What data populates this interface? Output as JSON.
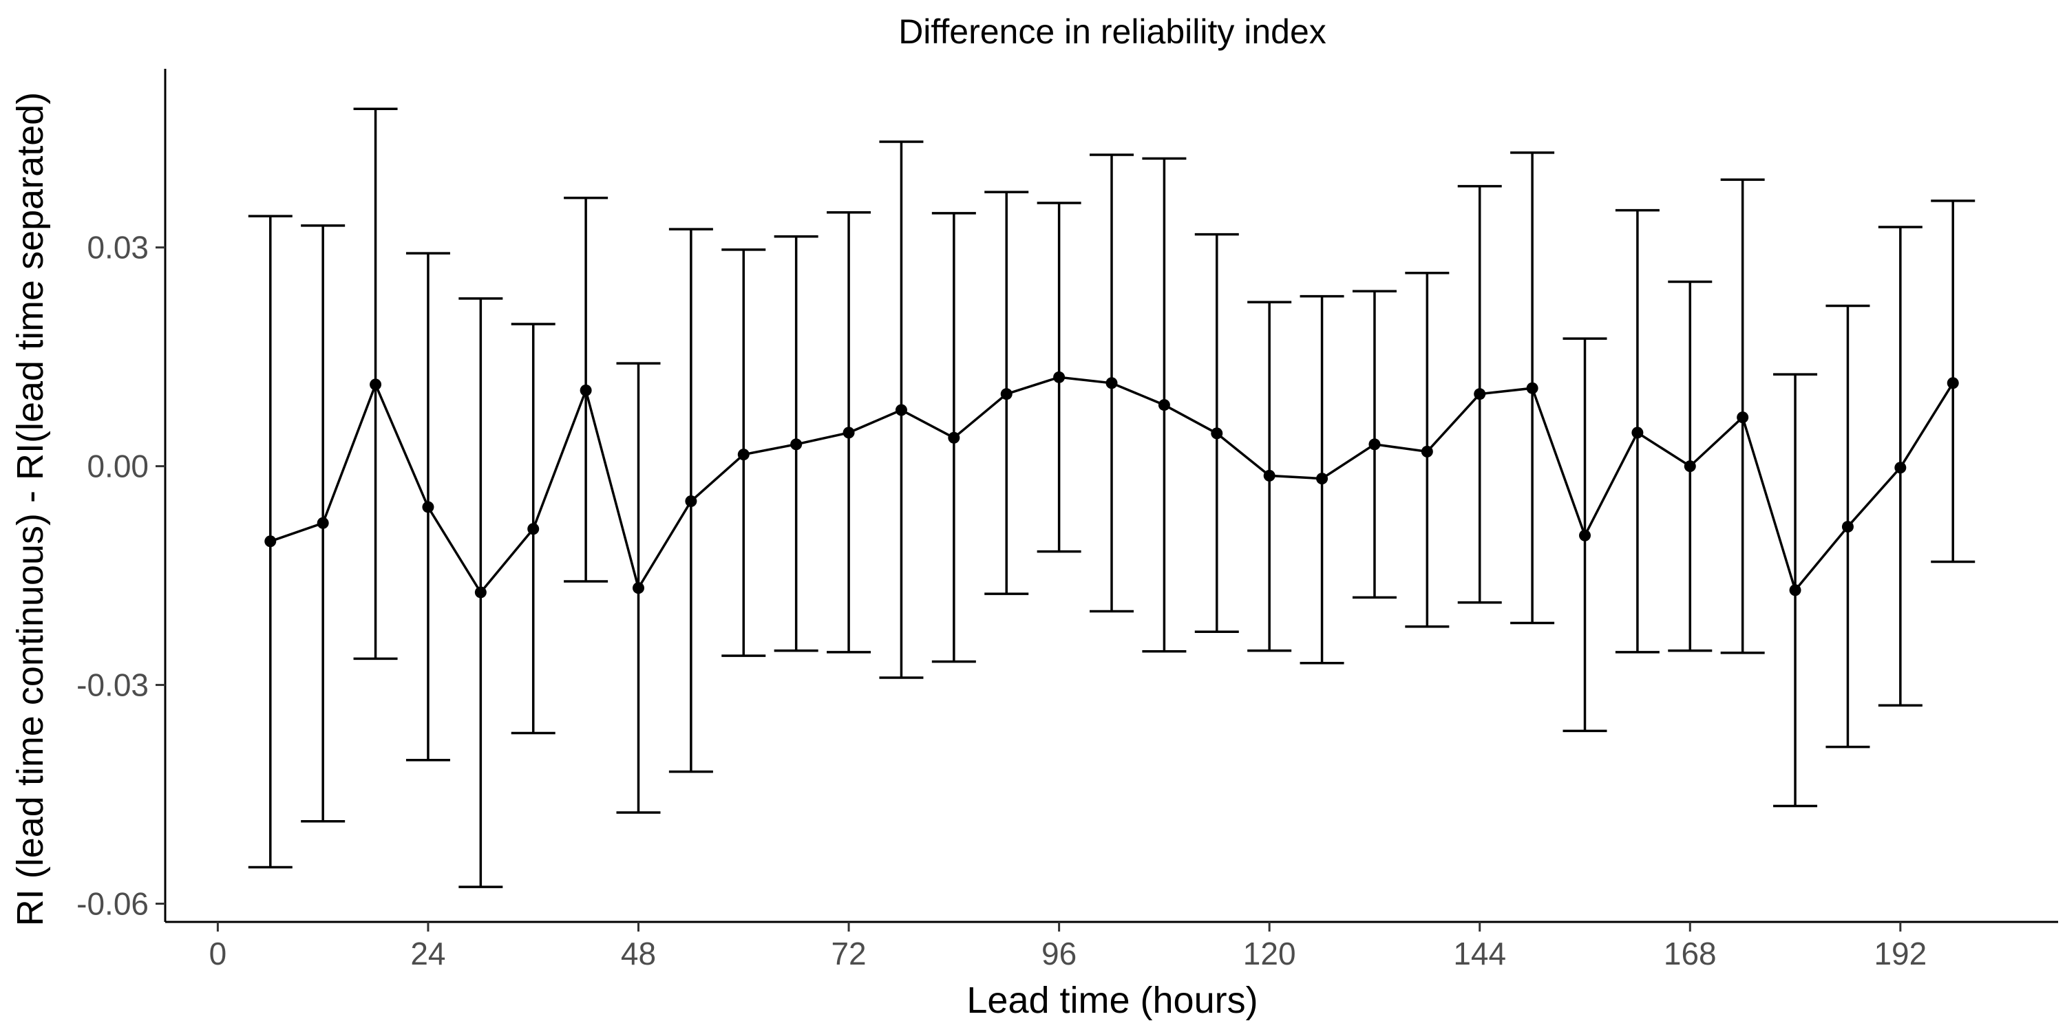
{
  "chart_data": {
    "type": "line",
    "title": "Difference in reliability index",
    "xlabel": "Lead time (hours)",
    "ylabel": "RI (lead time continuous) - RI(lead time separated)",
    "xlim": [
      -6,
      210
    ],
    "ylim": [
      -0.0625,
      0.0545
    ],
    "x_ticks": [
      0,
      24,
      48,
      72,
      96,
      120,
      144,
      168,
      192
    ],
    "x_tick_labels": [
      "0",
      "24",
      "48",
      "72",
      "96",
      "120",
      "144",
      "168",
      "192"
    ],
    "y_ticks": [
      -0.06,
      -0.03,
      0.0,
      0.03
    ],
    "y_tick_labels": [
      "-0.06",
      "-0.03",
      "0.00",
      "0.03"
    ],
    "grid": false,
    "legend": "none",
    "x": [
      6,
      12,
      18,
      24,
      30,
      36,
      42,
      48,
      54,
      60,
      66,
      72,
      78,
      84,
      90,
      96,
      102,
      108,
      114,
      120,
      126,
      132,
      138,
      144,
      150,
      156,
      162,
      168,
      174,
      180,
      186,
      192,
      198
    ],
    "y": [
      -0.0103,
      -0.0078,
      0.0112,
      -0.0056,
      -0.0173,
      -0.0086,
      0.0104,
      -0.0167,
      -0.0048,
      0.0016,
      0.003,
      0.0046,
      0.0077,
      0.0039,
      0.0099,
      0.0122,
      0.0114,
      0.0084,
      0.0045,
      -0.0013,
      -0.0017,
      0.003,
      0.002,
      0.0099,
      0.0107,
      -0.0095,
      0.0046,
      0.0,
      0.0067,
      -0.017,
      -0.0083,
      -0.0002,
      0.0114
    ],
    "lower": [
      -0.055,
      -0.0487,
      -0.0264,
      -0.0403,
      -0.0577,
      -0.0366,
      -0.0158,
      -0.0475,
      -0.0419,
      -0.026,
      -0.0253,
      -0.0255,
      -0.029,
      -0.0268,
      -0.0175,
      -0.0117,
      -0.0199,
      -0.0254,
      -0.0227,
      -0.0253,
      -0.027,
      -0.018,
      -0.022,
      -0.0187,
      -0.0215,
      -0.0363,
      -0.0255,
      -0.0253,
      -0.0256,
      -0.0466,
      -0.0385,
      -0.0328,
      -0.0131
    ],
    "upper": [
      0.0343,
      0.033,
      0.049,
      0.0292,
      0.023,
      0.0195,
      0.0368,
      0.0141,
      0.0325,
      0.0297,
      0.0315,
      0.0348,
      0.0445,
      0.0347,
      0.0376,
      0.0361,
      0.0427,
      0.0422,
      0.0318,
      0.0225,
      0.0233,
      0.024,
      0.0265,
      0.0384,
      0.043,
      0.0175,
      0.0351,
      0.0253,
      0.0393,
      0.0126,
      0.022,
      0.0328,
      0.0364
    ]
  }
}
